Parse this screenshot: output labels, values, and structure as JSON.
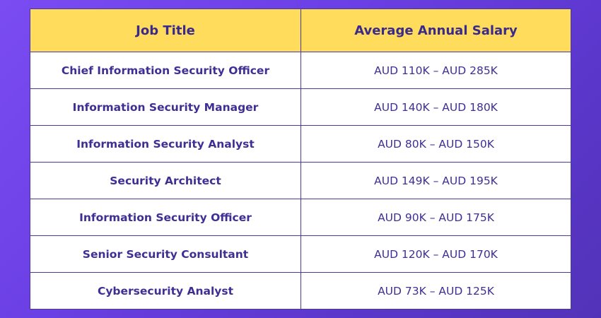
{
  "table": {
    "headers": {
      "job_title": "Job Title",
      "salary": "Average Annual Salary"
    },
    "rows": [
      {
        "job_title": "Chief Information Security Officer",
        "salary": "AUD 110K – AUD 285K"
      },
      {
        "job_title": "Information Security Manager",
        "salary": "AUD 140K – AUD 180K"
      },
      {
        "job_title": "Information Security Analyst",
        "salary": "AUD 80K – AUD 150K"
      },
      {
        "job_title": "Security Architect",
        "salary": "AUD 149K – AUD 195K"
      },
      {
        "job_title": "Information Security Officer",
        "salary": "AUD 90K – AUD 175K"
      },
      {
        "job_title": "Senior Security Consultant",
        "salary": "AUD 120K – AUD 170K"
      },
      {
        "job_title": "Cybersecurity Analyst",
        "salary": "AUD 73K – AUD 125K"
      }
    ]
  },
  "colors": {
    "header_background": "#ffdc5c",
    "text": "#3f2f94",
    "border": "#4a3a9a",
    "page_background": "#6a3fe3"
  }
}
